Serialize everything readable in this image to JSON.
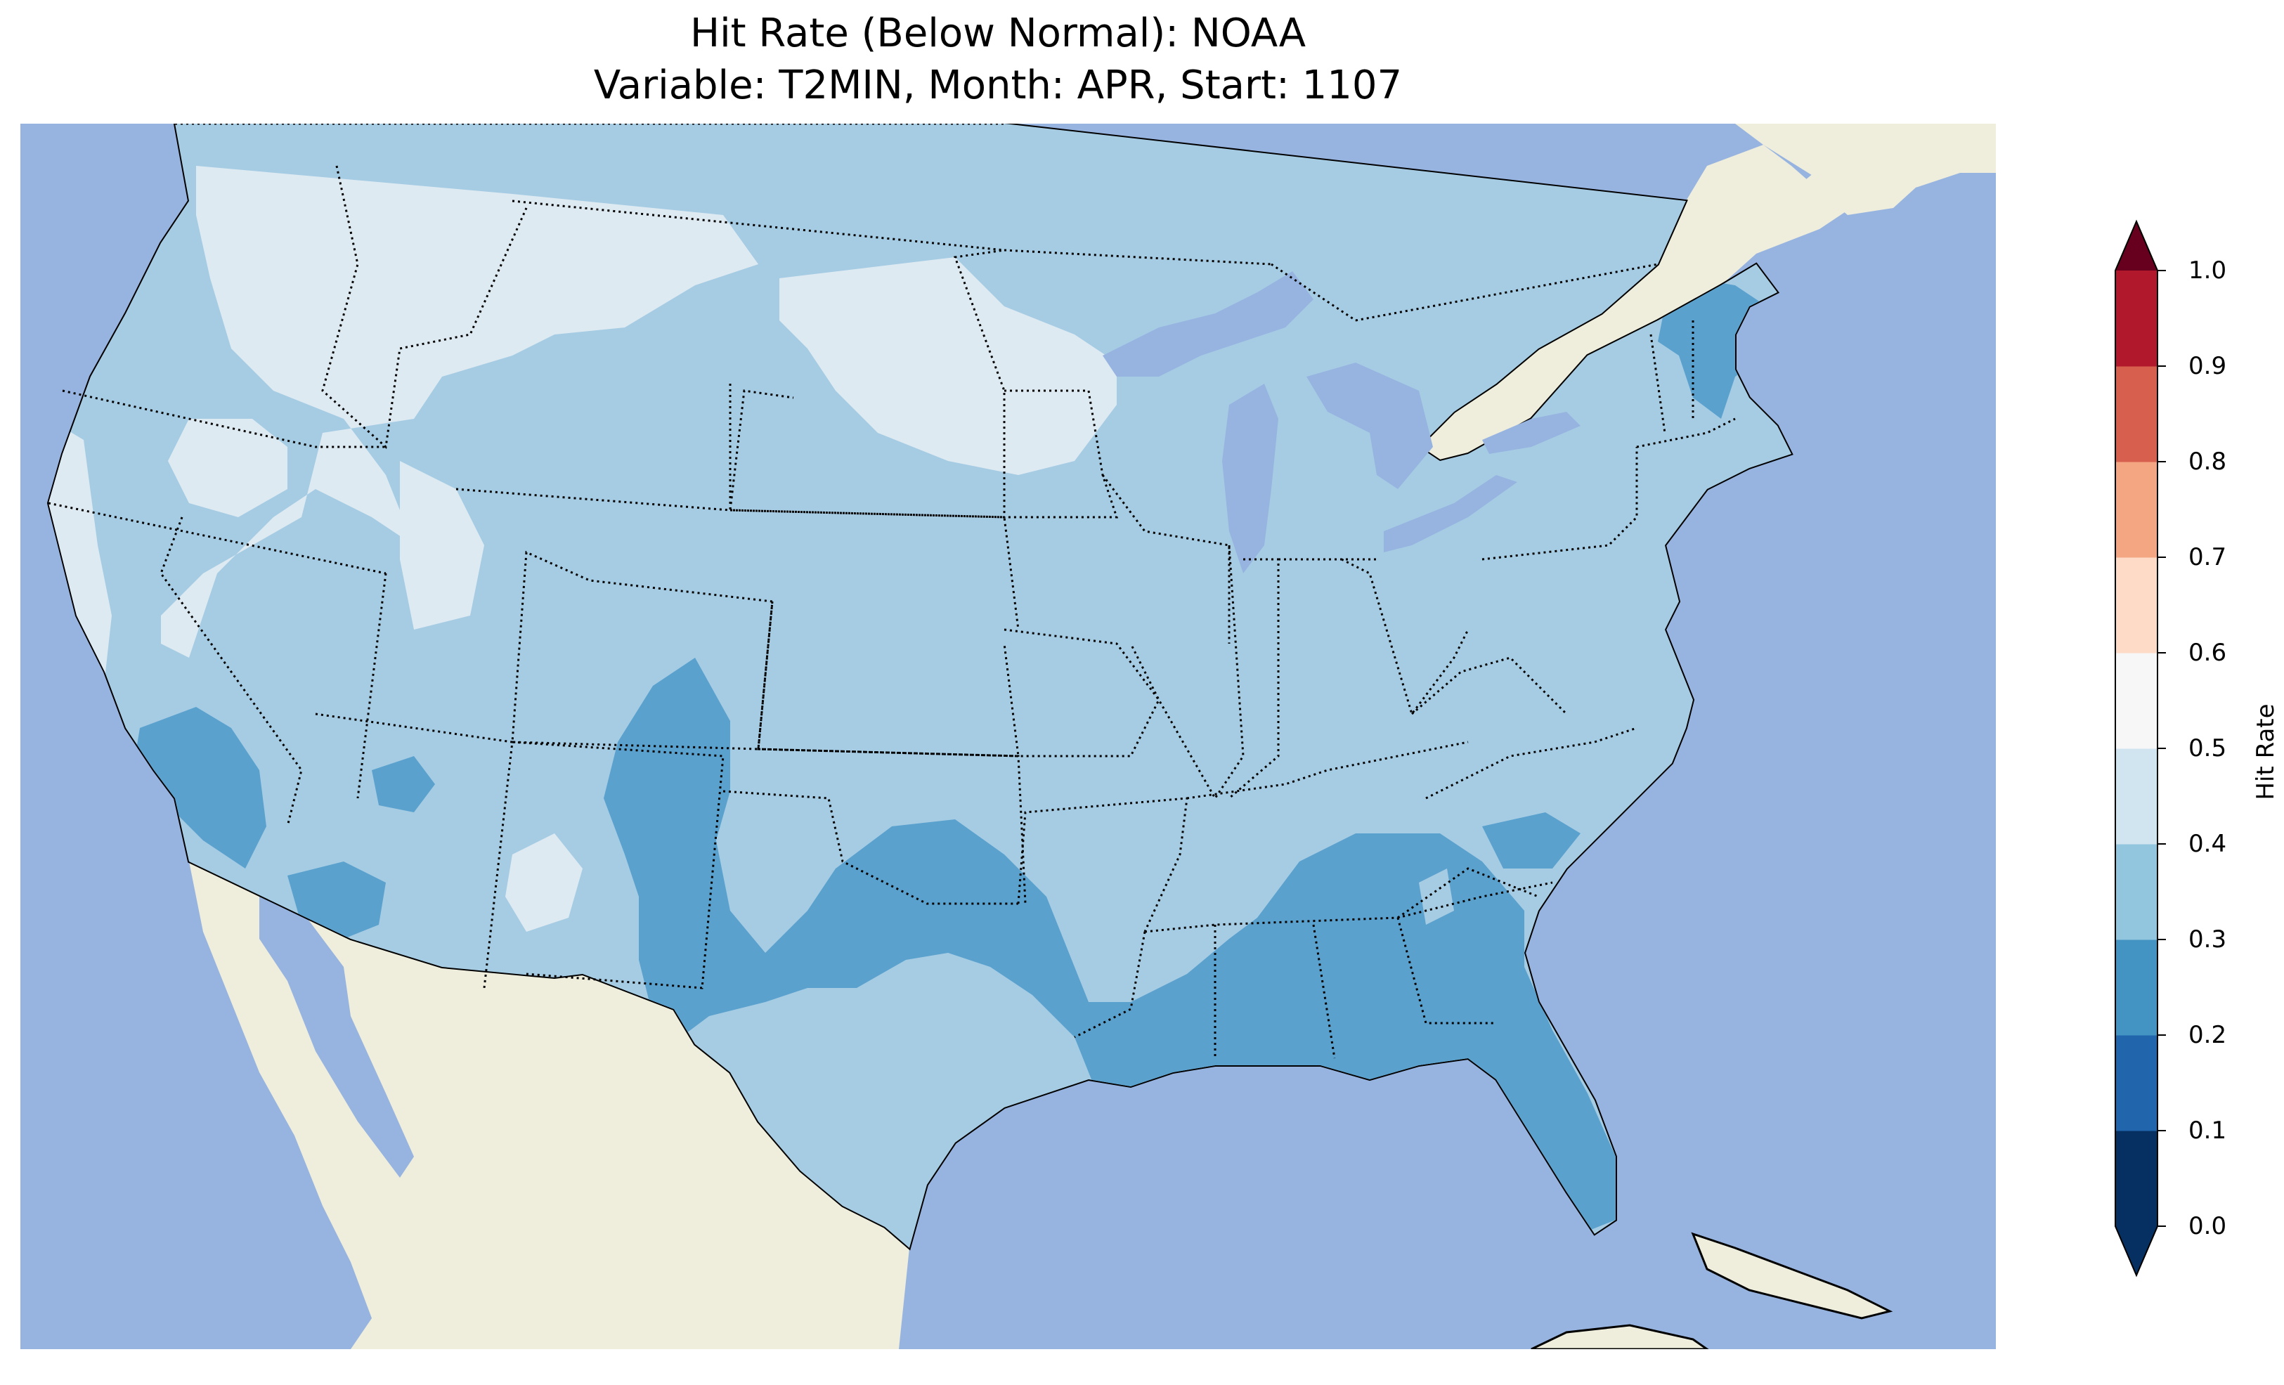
{
  "title": {
    "line1": "Hit Rate (Below Normal): NOAA",
    "line2": "Variable: T2MIN, Month: APR, Start: 1107"
  },
  "map": {
    "projection": "Lambert Conformal, contiguous United States",
    "colors": {
      "ocean": "#97b4e0",
      "land": "#efeddc",
      "lakes": "#97b4e0",
      "coastline": "#000000",
      "state_borders": "#000000"
    },
    "regions": [
      {
        "name": "Pacific Northwest / Northern Rockies / Northern Plains",
        "class": "0.4-0.5"
      },
      {
        "name": "Great Basin / Central Plains / Midwest / Northeast",
        "class": "0.3-0.4"
      },
      {
        "name": "Southern California / Arizona / New Mexico / Texas",
        "class": "0.2-0.3"
      },
      {
        "name": "Gulf Coast / Deep South / Florida / Maine",
        "class": "0.2-0.3"
      }
    ]
  },
  "colorbar": {
    "label": "Hit Rate",
    "ticks": [
      "0.0",
      "0.1",
      "0.2",
      "0.3",
      "0.4",
      "0.5",
      "0.6",
      "0.7",
      "0.8",
      "0.9",
      "1.0"
    ],
    "colors": [
      "#053061",
      "#2166ac",
      "#4393c3",
      "#92c5de",
      "#d1e5f0",
      "#f7f7f7",
      "#fddbc7",
      "#f4a582",
      "#d6604d",
      "#b2182b",
      "#67001f"
    ],
    "extend": "both"
  }
}
